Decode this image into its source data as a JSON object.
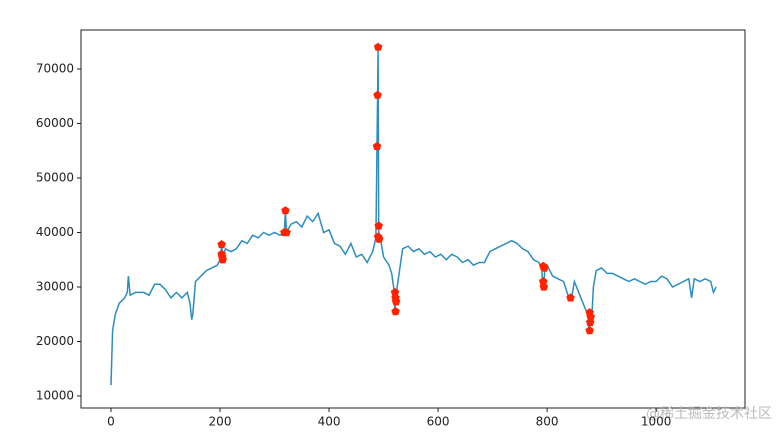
{
  "chart_data": {
    "type": "line",
    "watermark": "@稀土掘金技术社区",
    "xlim": [
      -55,
      1163
    ],
    "ylim": [
      7800,
      77150
    ],
    "xticks": [
      0,
      200,
      400,
      600,
      800,
      1000
    ],
    "yticks": [
      10000,
      20000,
      30000,
      40000,
      50000,
      60000,
      70000
    ],
    "series": [
      {
        "color": "#2c8dc0",
        "x": [
          0,
          3,
          8,
          15,
          25,
          30,
          32,
          35,
          45,
          60,
          70,
          80,
          90,
          100,
          110,
          120,
          130,
          140,
          145,
          148,
          150,
          155,
          165,
          175,
          185,
          195,
          200,
          203,
          205,
          210,
          220,
          230,
          240,
          250,
          260,
          270,
          280,
          290,
          300,
          310,
          318,
          320,
          322,
          330,
          340,
          350,
          360,
          370,
          380,
          390,
          400,
          410,
          420,
          430,
          440,
          450,
          460,
          470,
          480,
          486,
          488,
          489,
          490,
          491,
          492,
          495,
          500,
          510,
          515,
          520,
          521,
          522,
          523,
          525,
          535,
          545,
          555,
          565,
          575,
          585,
          595,
          605,
          615,
          625,
          635,
          645,
          655,
          665,
          675,
          685,
          695,
          705,
          715,
          725,
          735,
          745,
          755,
          765,
          775,
          785,
          790,
          792,
          794,
          796,
          800,
          810,
          820,
          830,
          840,
          845,
          850,
          860,
          870,
          875,
          877,
          880,
          882,
          885,
          890,
          900,
          910,
          920,
          930,
          940,
          950,
          960,
          970,
          980,
          990,
          1000,
          1010,
          1020,
          1030,
          1040,
          1050,
          1060,
          1065,
          1070,
          1080,
          1090,
          1100,
          1105,
          1110
        ],
        "values": [
          12000,
          22000,
          25000,
          27000,
          28000,
          29000,
          32000,
          28500,
          29000,
          29000,
          28500,
          30500,
          30500,
          29500,
          28000,
          29000,
          28000,
          29000,
          27000,
          24000,
          25000,
          31000,
          32000,
          33000,
          33500,
          34000,
          35000,
          37500,
          35500,
          37000,
          36500,
          37000,
          38500,
          38000,
          39500,
          39000,
          40000,
          39500,
          40000,
          39500,
          40000,
          44000,
          40000,
          41500,
          42000,
          41000,
          43000,
          42000,
          43500,
          40000,
          40500,
          38000,
          37500,
          36000,
          38000,
          35500,
          36000,
          34500,
          36500,
          39000,
          55800,
          65200,
          74000,
          41000,
          38800,
          38500,
          35500,
          34000,
          32500,
          28800,
          25500,
          27500,
          27000,
          30000,
          37000,
          37500,
          36500,
          37000,
          36000,
          36500,
          35500,
          36000,
          35000,
          36000,
          35500,
          34500,
          35000,
          34000,
          34500,
          34500,
          36500,
          37000,
          37500,
          38000,
          38500,
          38000,
          37000,
          36500,
          35000,
          34500,
          33500,
          30500,
          29800,
          33800,
          34000,
          32000,
          31500,
          31000,
          28000,
          28000,
          31000,
          28500,
          26000,
          25200,
          22000,
          23800,
          24500,
          30000,
          33000,
          33500,
          32500,
          32500,
          32000,
          31500,
          31000,
          31500,
          31000,
          30500,
          31000,
          31000,
          32000,
          31500,
          30000,
          30500,
          31000,
          31500,
          28000,
          31500,
          31000,
          31500,
          31000,
          29000,
          30000
        ]
      },
      {
        "color": "#ff2200",
        "marker": "pentagon",
        "x": [
          203,
          203,
          204,
          205,
          318,
          320,
          322,
          488,
          489,
          490,
          491,
          490,
          492,
          521,
          522,
          523,
          522,
          793,
          795,
          793,
          794,
          843,
          878,
          880,
          879,
          878
        ],
        "values": [
          37800,
          36000,
          35500,
          35000,
          40000,
          44000,
          40000,
          55800,
          65200,
          74000,
          41200,
          39200,
          38800,
          29000,
          28000,
          27300,
          25500,
          33800,
          33500,
          31000,
          30000,
          28000,
          25300,
          24500,
          23500,
          22000
        ]
      }
    ]
  }
}
